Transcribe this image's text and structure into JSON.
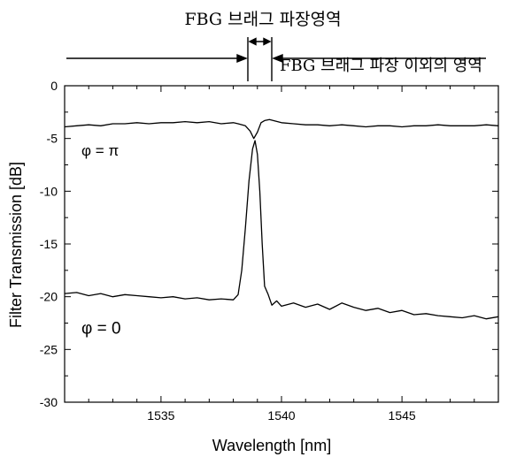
{
  "chart_data": {
    "type": "line",
    "title": "",
    "xlabel": "Wavelength [nm]",
    "ylabel": "Filter Transmission [dB]",
    "xlim": [
      1531,
      1549
    ],
    "ylim": [
      -30,
      0
    ],
    "x_ticks": [
      1535,
      1540,
      1545
    ],
    "y_ticks": [
      0,
      -5,
      -10,
      -15,
      -20,
      -25,
      -30
    ],
    "grid": false,
    "legend": "none",
    "series": [
      {
        "label": "φ = π",
        "color": "#000000",
        "points": [
          [
            1531.0,
            -3.9
          ],
          [
            1531.5,
            -3.8
          ],
          [
            1532.0,
            -3.7
          ],
          [
            1532.5,
            -3.8
          ],
          [
            1533.0,
            -3.6
          ],
          [
            1533.5,
            -3.6
          ],
          [
            1534.0,
            -3.5
          ],
          [
            1534.5,
            -3.6
          ],
          [
            1535.0,
            -3.5
          ],
          [
            1535.5,
            -3.5
          ],
          [
            1536.0,
            -3.4
          ],
          [
            1536.5,
            -3.5
          ],
          [
            1537.0,
            -3.4
          ],
          [
            1537.5,
            -3.6
          ],
          [
            1538.0,
            -3.5
          ],
          [
            1538.2,
            -3.6
          ],
          [
            1538.5,
            -3.8
          ],
          [
            1538.7,
            -4.3
          ],
          [
            1538.85,
            -5.0
          ],
          [
            1539.0,
            -4.4
          ],
          [
            1539.15,
            -3.5
          ],
          [
            1539.3,
            -3.3
          ],
          [
            1539.5,
            -3.2
          ],
          [
            1540.0,
            -3.5
          ],
          [
            1540.5,
            -3.6
          ],
          [
            1541.0,
            -3.7
          ],
          [
            1541.5,
            -3.7
          ],
          [
            1542.0,
            -3.8
          ],
          [
            1542.5,
            -3.7
          ],
          [
            1543.0,
            -3.8
          ],
          [
            1543.5,
            -3.9
          ],
          [
            1544.0,
            -3.8
          ],
          [
            1544.5,
            -3.8
          ],
          [
            1545.0,
            -3.9
          ],
          [
            1545.5,
            -3.8
          ],
          [
            1546.0,
            -3.8
          ],
          [
            1546.5,
            -3.7
          ],
          [
            1547.0,
            -3.8
          ],
          [
            1547.5,
            -3.8
          ],
          [
            1548.0,
            -3.8
          ],
          [
            1548.5,
            -3.7
          ],
          [
            1549.0,
            -3.8
          ]
        ]
      },
      {
        "label": "φ = 0",
        "color": "#000000",
        "points": [
          [
            1531.0,
            -19.7
          ],
          [
            1531.5,
            -19.6
          ],
          [
            1532.0,
            -19.9
          ],
          [
            1532.5,
            -19.7
          ],
          [
            1533.0,
            -20.0
          ],
          [
            1533.5,
            -19.8
          ],
          [
            1534.0,
            -19.9
          ],
          [
            1534.5,
            -20.0
          ],
          [
            1535.0,
            -20.1
          ],
          [
            1535.5,
            -20.0
          ],
          [
            1536.0,
            -20.2
          ],
          [
            1536.5,
            -20.1
          ],
          [
            1537.0,
            -20.3
          ],
          [
            1537.5,
            -20.2
          ],
          [
            1538.0,
            -20.3
          ],
          [
            1538.2,
            -19.8
          ],
          [
            1538.35,
            -17.5
          ],
          [
            1538.5,
            -13.5
          ],
          [
            1538.65,
            -9.0
          ],
          [
            1538.8,
            -6.0
          ],
          [
            1538.9,
            -5.2
          ],
          [
            1539.0,
            -6.5
          ],
          [
            1539.1,
            -10.0
          ],
          [
            1539.2,
            -15.0
          ],
          [
            1539.3,
            -19.0
          ],
          [
            1539.45,
            -19.8
          ],
          [
            1539.6,
            -20.8
          ],
          [
            1539.8,
            -20.4
          ],
          [
            1540.0,
            -20.9
          ],
          [
            1540.5,
            -20.6
          ],
          [
            1541.0,
            -21.0
          ],
          [
            1541.5,
            -20.7
          ],
          [
            1542.0,
            -21.2
          ],
          [
            1542.5,
            -20.6
          ],
          [
            1543.0,
            -21.0
          ],
          [
            1543.5,
            -21.3
          ],
          [
            1544.0,
            -21.1
          ],
          [
            1544.5,
            -21.5
          ],
          [
            1545.0,
            -21.3
          ],
          [
            1545.5,
            -21.7
          ],
          [
            1546.0,
            -21.6
          ],
          [
            1546.5,
            -21.8
          ],
          [
            1547.0,
            -21.9
          ],
          [
            1547.5,
            -22.0
          ],
          [
            1548.0,
            -21.8
          ],
          [
            1548.5,
            -22.1
          ],
          [
            1549.0,
            -21.9
          ]
        ]
      }
    ],
    "annotations": {
      "bragg_region": "FBG 브래그 파장영역",
      "outside_region": "FBG 브래그 파장 이외의 영역"
    }
  }
}
